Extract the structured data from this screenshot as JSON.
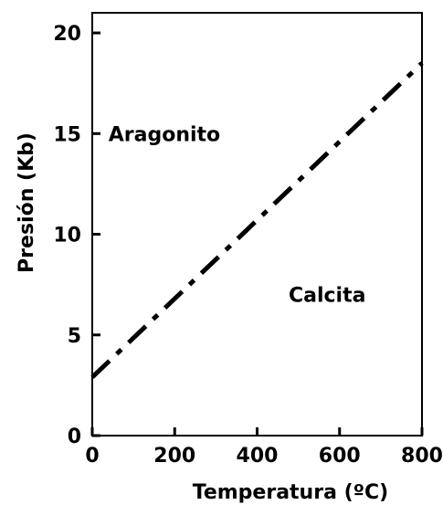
{
  "chart_data": {
    "type": "line",
    "title": "",
    "xlabel": "Temperatura (ºC)",
    "ylabel": "Presión (Kb)",
    "xlim": [
      0,
      800
    ],
    "ylim": [
      0,
      21
    ],
    "xticks": [
      0,
      200,
      400,
      600,
      800
    ],
    "yticks": [
      0,
      5,
      10,
      15,
      20
    ],
    "xtick_labels": [
      "0",
      "200",
      "400",
      "600",
      "800"
    ],
    "ytick_labels": [
      "0",
      "5",
      "10",
      "15",
      "20"
    ],
    "grid": false,
    "series": [
      {
        "style": "dash-dot",
        "color": "#000000",
        "x": [
          0,
          800
        ],
        "y": [
          2.9,
          18.5
        ]
      }
    ],
    "annotations": [
      {
        "text": "Aragonito",
        "x": 175,
        "y": 15
      },
      {
        "text": "Calcita",
        "x": 570,
        "y": 7
      }
    ]
  }
}
